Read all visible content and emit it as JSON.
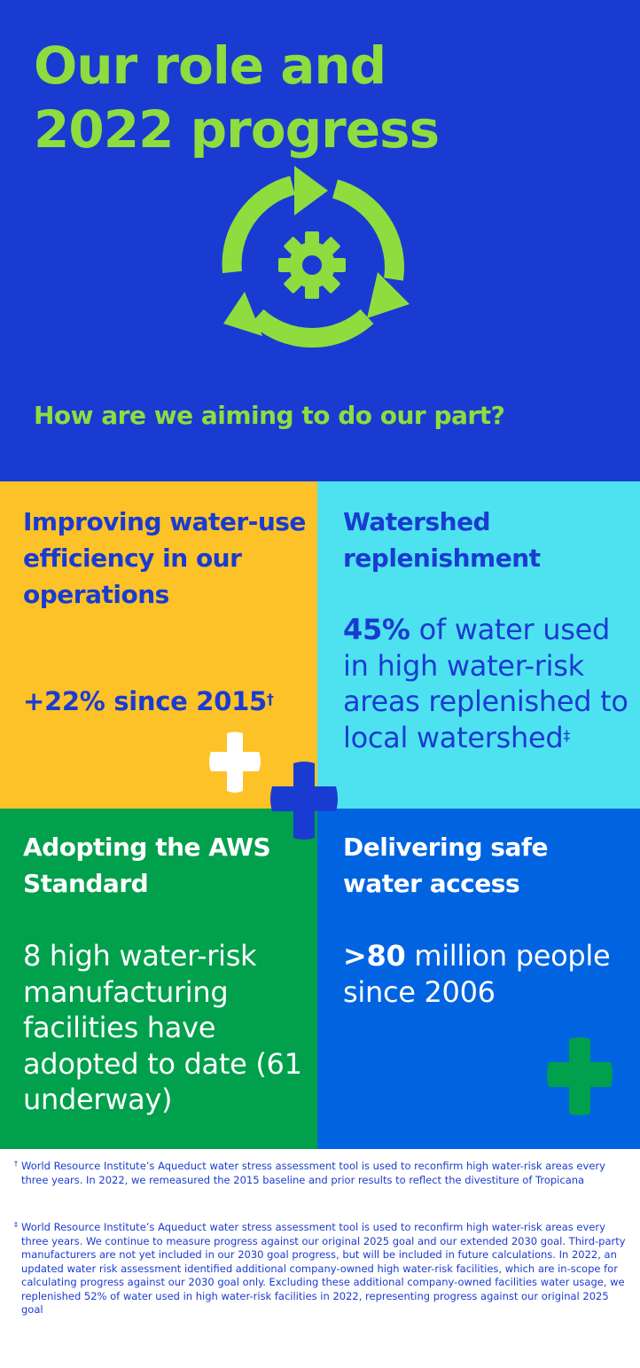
{
  "hero": {
    "title_line1": "Our role and",
    "title_line2": "2022 progress",
    "icon": "cycle-gear-icon",
    "subtitle": "How are we aiming to do our part?"
  },
  "tiles": [
    {
      "heading": "Improving water-use efficiency in our operations",
      "stat_strong": "+22% since 2015",
      "stat_text": "",
      "mark": "†",
      "color": "#fcc227"
    },
    {
      "heading": "Watershed replenishment",
      "stat_strong": "45%",
      "stat_text": " of water used in high water-risk areas replenished to local watershed",
      "mark": "‡",
      "color": "#4ee2f0"
    },
    {
      "heading": "Adopting the AWS Standard",
      "stat_strong": "",
      "stat_text": "8 high water-risk manufacturing facilities have adopted to date (61 underway)",
      "mark": "",
      "color": "#00a04c"
    },
    {
      "heading": "Delivering safe water access",
      "stat_strong": ">80",
      "stat_text": " million people since 2006",
      "mark": "",
      "color": "#0064e1"
    }
  ],
  "decorations": {
    "plus_icons": [
      "plus-icon-white",
      "plus-icon-dark-blue",
      "plus-icon-green"
    ]
  },
  "footnotes": [
    {
      "mark": "†",
      "text": "World Resource Institute’s Aqueduct water stress assessment tool is used to reconfirm high water-risk areas every three years. In 2022, we remeasured the 2015 baseline and prior results to reflect the divestiture of Tropicana"
    },
    {
      "mark": "‡",
      "text": "World Resource Institute’s Aqueduct water stress assessment tool is used to reconfirm high water-risk areas every three years. We continue to measure progress against our original 2025 goal and our extended 2030 goal. Third-party manufacturers are not yet included in our 2030 goal progress, but will be included in future calculations. In 2022, an updated water risk assessment identified additional company-owned high water-risk facilities, which are in-scope for calculating progress against our 2030 goal only. Excluding these additional company-owned facilities water usage, we replenished 52% of water used in high water-risk facilities in 2022, representing progress against our original 2025 goal"
    }
  ],
  "colors": {
    "hero_bg": "#1a3bd1",
    "accent_green": "#8fdc3e",
    "text_blue": "#1a3bd1"
  }
}
